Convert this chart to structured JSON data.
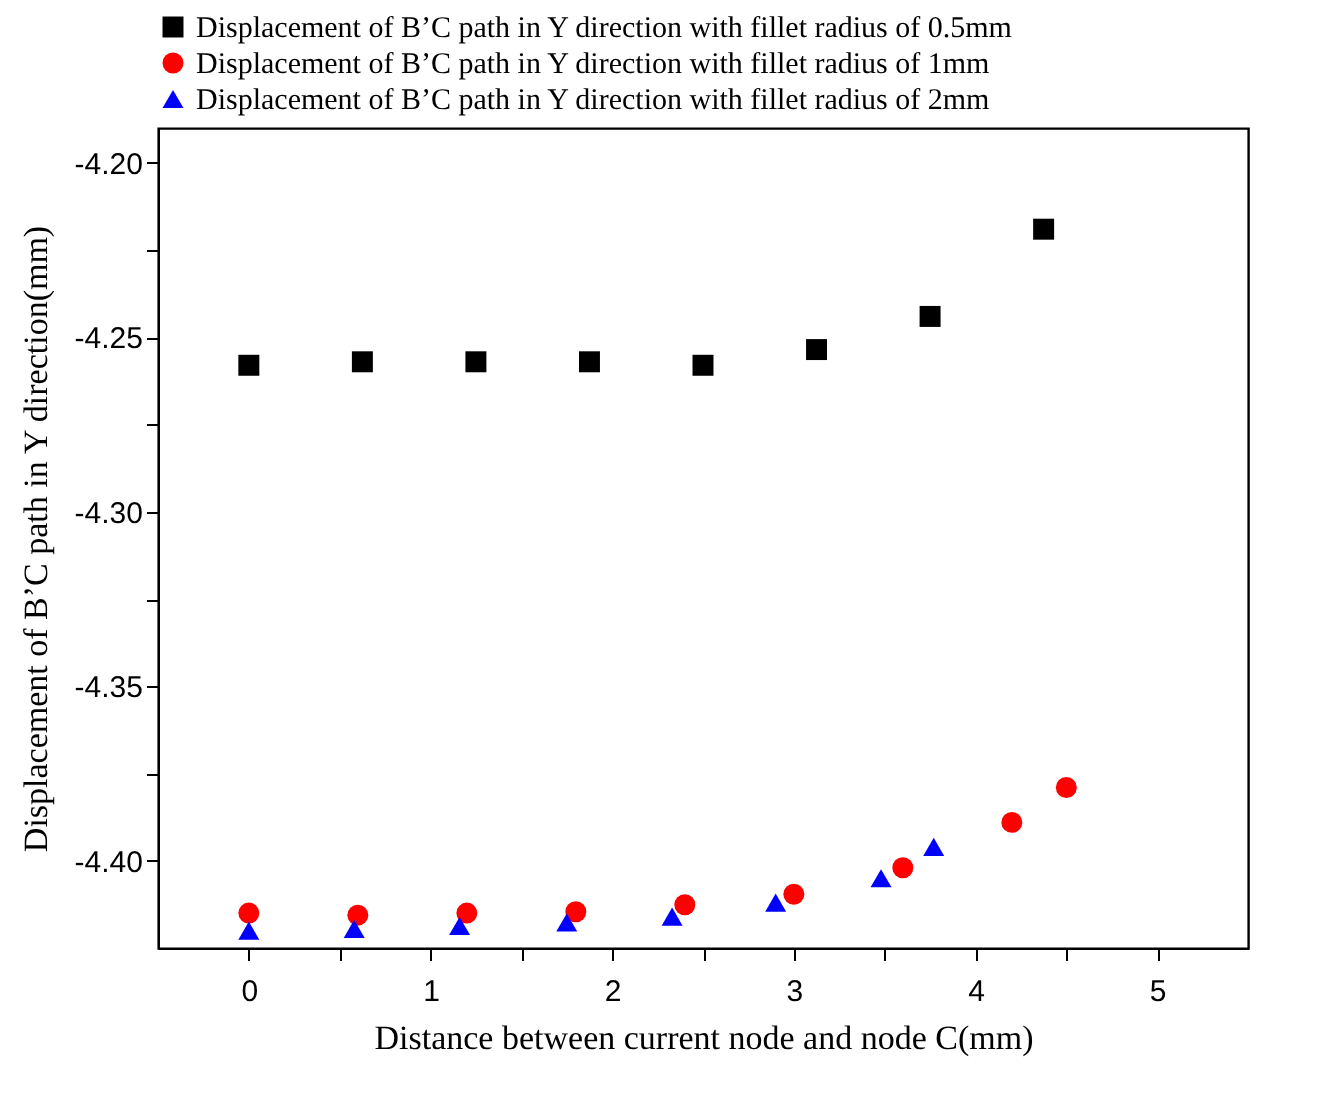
{
  "chart_data": {
    "type": "scatter",
    "xlabel": "Distance between current node and node C(mm)",
    "ylabel": "Displacement of B’C path in Y direction(mm)",
    "xlim": [
      -0.5,
      5.5
    ],
    "ylim": [
      -4.425,
      -4.19
    ],
    "xticks": [
      0,
      {
        "value": 0.5,
        "label": null
      },
      1,
      {
        "value": 1.5,
        "label": null
      },
      2,
      {
        "value": 2.5,
        "label": null
      },
      3,
      {
        "value": 3.5,
        "label": null
      },
      4,
      {
        "value": 4.5,
        "label": null
      },
      5
    ],
    "yticks": [
      {
        "value": -4.4,
        "label": "-4.40"
      },
      {
        "value": -4.375,
        "label": null
      },
      {
        "value": -4.35,
        "label": "-4.35"
      },
      {
        "value": -4.325,
        "label": null
      },
      {
        "value": -4.3,
        "label": "-4.30"
      },
      {
        "value": -4.275,
        "label": null
      },
      {
        "value": -4.25,
        "label": "-4.25"
      },
      {
        "value": -4.225,
        "label": null
      },
      {
        "value": -4.2,
        "label": "-4.20"
      }
    ],
    "legend": "top",
    "grid": false,
    "series": [
      {
        "name": "Displacement of B’C path in Y direction with fillet radius of 0.5mm",
        "color": "#000000",
        "marker": "square",
        "x": [
          0,
          0.625,
          1.25,
          1.875,
          2.5,
          3.125,
          3.75,
          4.375
        ],
        "values": [
          -4.258,
          -4.257,
          -4.257,
          -4.257,
          -4.258,
          -4.2535,
          -4.244,
          -4.219
        ]
      },
      {
        "name": "Displacement of B’C path in Y direction with fillet radius of 1mm",
        "color": "#ff0000",
        "marker": "circle",
        "x": [
          0,
          0.6,
          1.2,
          1.8,
          2.4,
          3.0,
          3.6,
          4.2,
          4.5
        ],
        "values": [
          -4.415,
          -4.4156,
          -4.415,
          -4.4146,
          -4.4126,
          -4.4096,
          -4.402,
          -4.389,
          -4.379
        ]
      },
      {
        "name": "Displacement of B’C path in Y direction with fillet radius of 2mm",
        "color": "#0000ff",
        "marker": "triangle",
        "x": [
          0,
          0.58,
          1.16,
          1.75,
          2.33,
          2.9,
          3.48,
          3.77
        ],
        "values": [
          -4.42,
          -4.4195,
          -4.4187,
          -4.4177,
          -4.416,
          -4.412,
          -4.405,
          -4.396
        ]
      }
    ]
  }
}
